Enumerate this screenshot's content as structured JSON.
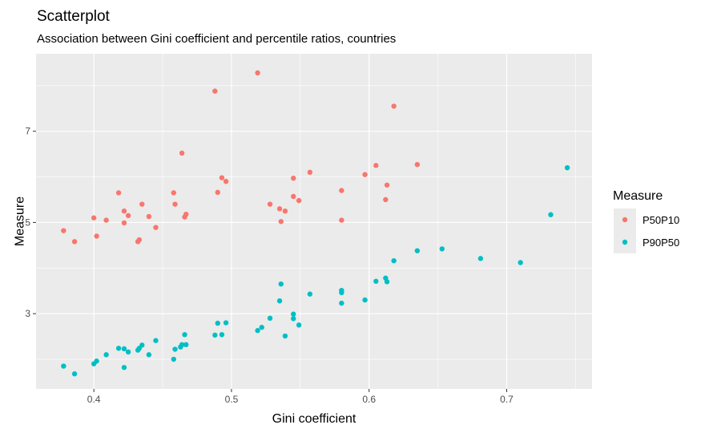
{
  "chart_data": {
    "type": "scatter",
    "title": "Scatterplot",
    "subtitle": "Association between Gini coefficient and percentile ratios, countries",
    "xlabel": "Gini coefficient",
    "ylabel": "Measure",
    "xlim": [
      0.358,
      0.762
    ],
    "ylim": [
      1.35,
      8.7
    ],
    "x_ticks": [
      0.4,
      0.5,
      0.6,
      0.7
    ],
    "x_tick_labels": [
      "0.4",
      "0.5",
      "0.6",
      "0.7"
    ],
    "y_ticks": [
      3,
      5,
      7
    ],
    "y_tick_labels": [
      "3",
      "5",
      "7"
    ],
    "grid": true,
    "legend": {
      "title": "Measure",
      "position": "right"
    },
    "series": [
      {
        "name": "P50P10",
        "color": "#F8766D",
        "points": [
          [
            0.378,
            4.82
          ],
          [
            0.386,
            4.58
          ],
          [
            0.4,
            5.1
          ],
          [
            0.402,
            4.7
          ],
          [
            0.409,
            5.05
          ],
          [
            0.418,
            5.65
          ],
          [
            0.422,
            5.25
          ],
          [
            0.422,
            4.99
          ],
          [
            0.425,
            5.15
          ],
          [
            0.432,
            4.58
          ],
          [
            0.433,
            4.62
          ],
          [
            0.435,
            5.4
          ],
          [
            0.44,
            5.13
          ],
          [
            0.445,
            4.89
          ],
          [
            0.458,
            5.65
          ],
          [
            0.459,
            5.4
          ],
          [
            0.464,
            6.52
          ],
          [
            0.466,
            5.12
          ],
          [
            0.467,
            5.18
          ],
          [
            0.488,
            7.88
          ],
          [
            0.49,
            5.66
          ],
          [
            0.493,
            5.98
          ],
          [
            0.496,
            5.9
          ],
          [
            0.519,
            8.28
          ],
          [
            0.528,
            5.4
          ],
          [
            0.535,
            5.3
          ],
          [
            0.536,
            5.02
          ],
          [
            0.539,
            5.25
          ],
          [
            0.545,
            5.57
          ],
          [
            0.545,
            5.97
          ],
          [
            0.549,
            5.48
          ],
          [
            0.557,
            6.1
          ],
          [
            0.58,
            5.7
          ],
          [
            0.58,
            5.05
          ],
          [
            0.597,
            6.05
          ],
          [
            0.605,
            6.25
          ],
          [
            0.612,
            5.5
          ],
          [
            0.613,
            5.82
          ],
          [
            0.618,
            7.55
          ],
          [
            0.635,
            6.27
          ]
        ]
      },
      {
        "name": "P90P50",
        "color": "#00BFC4",
        "points": [
          [
            0.378,
            1.85
          ],
          [
            0.386,
            1.68
          ],
          [
            0.4,
            1.9
          ],
          [
            0.402,
            1.96
          ],
          [
            0.409,
            2.1
          ],
          [
            0.418,
            2.24
          ],
          [
            0.422,
            2.23
          ],
          [
            0.422,
            1.82
          ],
          [
            0.425,
            2.16
          ],
          [
            0.432,
            2.2
          ],
          [
            0.433,
            2.24
          ],
          [
            0.435,
            2.31
          ],
          [
            0.44,
            2.1
          ],
          [
            0.445,
            2.41
          ],
          [
            0.458,
            2.0
          ],
          [
            0.459,
            2.22
          ],
          [
            0.463,
            2.27
          ],
          [
            0.464,
            2.32
          ],
          [
            0.466,
            2.54
          ],
          [
            0.467,
            2.32
          ],
          [
            0.488,
            2.53
          ],
          [
            0.49,
            2.79
          ],
          [
            0.493,
            2.54
          ],
          [
            0.496,
            2.8
          ],
          [
            0.519,
            2.63
          ],
          [
            0.522,
            2.7
          ],
          [
            0.528,
            2.9
          ],
          [
            0.535,
            3.28
          ],
          [
            0.536,
            3.65
          ],
          [
            0.539,
            2.51
          ],
          [
            0.545,
            2.99
          ],
          [
            0.545,
            2.89
          ],
          [
            0.549,
            2.75
          ],
          [
            0.557,
            3.43
          ],
          [
            0.58,
            3.51
          ],
          [
            0.58,
            3.46
          ],
          [
            0.58,
            3.23
          ],
          [
            0.597,
            3.3
          ],
          [
            0.605,
            3.71
          ],
          [
            0.612,
            3.78
          ],
          [
            0.613,
            3.7
          ],
          [
            0.618,
            4.16
          ],
          [
            0.635,
            4.38
          ],
          [
            0.653,
            4.42
          ],
          [
            0.681,
            4.21
          ],
          [
            0.71,
            4.12
          ],
          [
            0.732,
            5.17
          ],
          [
            0.744,
            6.2
          ]
        ]
      }
    ]
  }
}
